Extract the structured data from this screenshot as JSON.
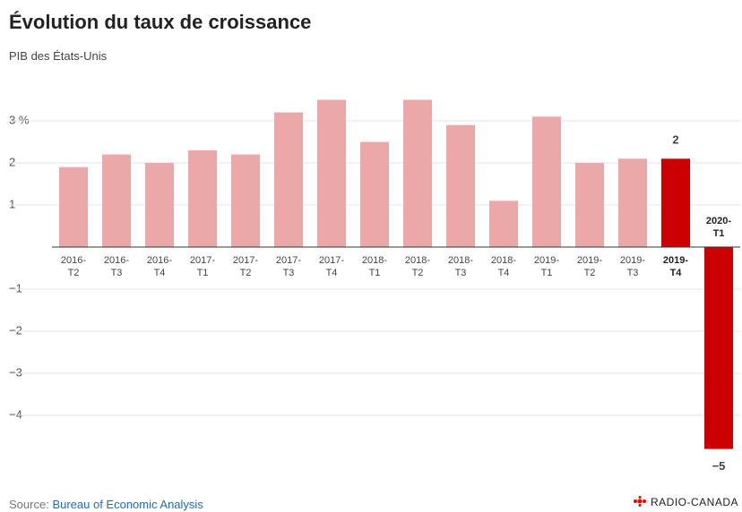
{
  "chart_data": {
    "type": "bar",
    "title": "Évolution du taux de croissance",
    "subtitle": "PIB des États-Unis",
    "categories": [
      "2016-T2",
      "2016-T3",
      "2016-T4",
      "2017-T1",
      "2017-T2",
      "2017-T3",
      "2017-T4",
      "2018-T1",
      "2018-T2",
      "2018-T3",
      "2018-T4",
      "2019-T1",
      "2019-T2",
      "2019-T3",
      "2019-T4",
      "2020-T1"
    ],
    "values": [
      1.9,
      2.2,
      2.0,
      2.3,
      2.2,
      3.2,
      3.5,
      2.5,
      3.5,
      2.9,
      1.1,
      3.1,
      2.0,
      2.1,
      2.1,
      -4.8
    ],
    "value_labels": [
      null,
      null,
      null,
      null,
      null,
      null,
      null,
      null,
      null,
      null,
      null,
      null,
      null,
      null,
      "2",
      "−5"
    ],
    "colors": [
      "#eba8a8",
      "#eba8a8",
      "#eba8a8",
      "#eba8a8",
      "#eba8a8",
      "#eba8a8",
      "#eba8a8",
      "#eba8a8",
      "#eba8a8",
      "#eba8a8",
      "#eba8a8",
      "#eba8a8",
      "#eba8a8",
      "#eba8a8",
      "#cc0000",
      "#cc0000"
    ],
    "ylim": [
      -5.1,
      3.8
    ],
    "yticks": [
      {
        "value": -4,
        "label": "−4"
      },
      {
        "value": -3,
        "label": "−3"
      },
      {
        "value": -2,
        "label": "−2"
      },
      {
        "value": -1,
        "label": "−1"
      },
      {
        "value": 1,
        "label": "1"
      },
      {
        "value": 2,
        "label": "2"
      },
      {
        "value": 3,
        "label": "3 %"
      }
    ],
    "grid": true,
    "source_label": "Source:",
    "source": "Bureau of Economic Analysis",
    "logo": "RADIO-CANADA"
  }
}
